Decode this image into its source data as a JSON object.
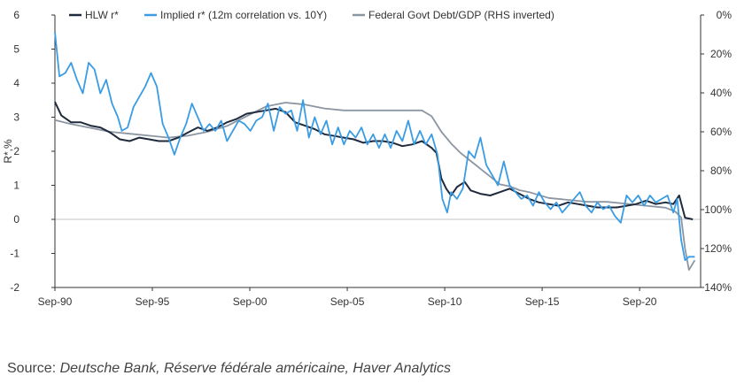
{
  "chart_data": {
    "type": "line",
    "title": "",
    "ylabel": "R*,%",
    "y2label": "",
    "ylim": [
      -2,
      6
    ],
    "y_ticks": [
      "6",
      "5",
      "4",
      "3",
      "2",
      "1",
      "0",
      "-1",
      "-2"
    ],
    "y2lim": [
      0,
      140
    ],
    "y2_inverted": true,
    "y2_ticks": [
      "0%",
      "20%",
      "40%",
      "60%",
      "80%",
      "100%",
      "120%",
      "140%"
    ],
    "xlim": [
      1990.67,
      2023.8
    ],
    "x_ticks": [
      {
        "label": "Sep-90",
        "x": 1990.67
      },
      {
        "label": "Sep-95",
        "x": 1995.67
      },
      {
        "label": "Sep-00",
        "x": 2000.67
      },
      {
        "label": "Sep-05",
        "x": 2005.67
      },
      {
        "label": "Sep-10",
        "x": 2010.67
      },
      {
        "label": "Sep-15",
        "x": 2015.67
      },
      {
        "label": "Sep-20",
        "x": 2020.67
      }
    ],
    "grid": false,
    "legend_position": "top",
    "series": [
      {
        "name": "HLW r*",
        "color": "#1f2a3c",
        "axis": "left",
        "points": [
          [
            1990.67,
            3.45
          ],
          [
            1991.0,
            3.05
          ],
          [
            1991.5,
            2.85
          ],
          [
            1992.0,
            2.85
          ],
          [
            1992.5,
            2.75
          ],
          [
            1993.0,
            2.7
          ],
          [
            1993.5,
            2.55
          ],
          [
            1994.0,
            2.35
          ],
          [
            1994.5,
            2.3
          ],
          [
            1995.0,
            2.4
          ],
          [
            1995.5,
            2.35
          ],
          [
            1996.0,
            2.3
          ],
          [
            1996.5,
            2.3
          ],
          [
            1997.0,
            2.4
          ],
          [
            1997.5,
            2.55
          ],
          [
            1998.0,
            2.7
          ],
          [
            1998.5,
            2.6
          ],
          [
            1999.0,
            2.7
          ],
          [
            1999.5,
            2.85
          ],
          [
            2000.0,
            2.95
          ],
          [
            2000.5,
            3.1
          ],
          [
            2001.0,
            3.15
          ],
          [
            2001.5,
            3.2
          ],
          [
            2002.0,
            3.25
          ],
          [
            2002.5,
            3.15
          ],
          [
            2003.0,
            2.85
          ],
          [
            2003.5,
            2.75
          ],
          [
            2004.0,
            2.65
          ],
          [
            2004.5,
            2.5
          ],
          [
            2005.0,
            2.45
          ],
          [
            2005.5,
            2.4
          ],
          [
            2006.0,
            2.35
          ],
          [
            2006.5,
            2.25
          ],
          [
            2007.0,
            2.3
          ],
          [
            2007.5,
            2.3
          ],
          [
            2008.0,
            2.25
          ],
          [
            2008.5,
            2.15
          ],
          [
            2009.0,
            2.2
          ],
          [
            2009.5,
            2.3
          ],
          [
            2010.0,
            2.1
          ],
          [
            2010.25,
            1.95
          ],
          [
            2010.5,
            1.2
          ],
          [
            2010.75,
            0.9
          ],
          [
            2011.0,
            0.7
          ],
          [
            2011.3,
            0.95
          ],
          [
            2011.7,
            1.1
          ],
          [
            2012.0,
            0.85
          ],
          [
            2012.5,
            0.75
          ],
          [
            2013.0,
            0.7
          ],
          [
            2013.5,
            0.8
          ],
          [
            2014.0,
            0.9
          ],
          [
            2014.5,
            0.75
          ],
          [
            2015.0,
            0.6
          ],
          [
            2015.5,
            0.5
          ],
          [
            2016.0,
            0.45
          ],
          [
            2016.5,
            0.4
          ],
          [
            2017.0,
            0.5
          ],
          [
            2017.5,
            0.45
          ],
          [
            2018.0,
            0.4
          ],
          [
            2018.5,
            0.35
          ],
          [
            2019.0,
            0.35
          ],
          [
            2019.5,
            0.35
          ],
          [
            2020.0,
            0.4
          ],
          [
            2020.5,
            0.45
          ],
          [
            2021.0,
            0.55
          ],
          [
            2021.5,
            0.45
          ],
          [
            2022.0,
            0.5
          ],
          [
            2022.4,
            0.45
          ],
          [
            2022.7,
            0.7
          ],
          [
            2023.0,
            0.05
          ],
          [
            2023.4,
            0.0
          ]
        ]
      },
      {
        "name": "Implied r* (12m correlation vs. 10Y)",
        "color": "#3a9ce4",
        "axis": "left",
        "points": [
          [
            1990.67,
            5.5
          ],
          [
            1990.9,
            4.2
          ],
          [
            1991.2,
            4.3
          ],
          [
            1991.5,
            4.6
          ],
          [
            1991.8,
            4.1
          ],
          [
            1992.1,
            3.7
          ],
          [
            1992.4,
            4.6
          ],
          [
            1992.7,
            4.4
          ],
          [
            1993.0,
            3.7
          ],
          [
            1993.3,
            4.1
          ],
          [
            1993.6,
            3.4
          ],
          [
            1993.9,
            3.0
          ],
          [
            1994.1,
            2.6
          ],
          [
            1994.4,
            2.7
          ],
          [
            1994.7,
            3.3
          ],
          [
            1995.0,
            3.6
          ],
          [
            1995.3,
            3.9
          ],
          [
            1995.6,
            4.3
          ],
          [
            1995.9,
            3.9
          ],
          [
            1996.2,
            2.8
          ],
          [
            1996.5,
            2.4
          ],
          [
            1996.8,
            1.9
          ],
          [
            1997.1,
            2.4
          ],
          [
            1997.4,
            2.8
          ],
          [
            1997.7,
            3.4
          ],
          [
            1998.0,
            3.0
          ],
          [
            1998.3,
            2.6
          ],
          [
            1998.6,
            2.8
          ],
          [
            1998.9,
            2.6
          ],
          [
            1999.2,
            2.9
          ],
          [
            1999.5,
            2.3
          ],
          [
            1999.8,
            2.6
          ],
          [
            2000.1,
            2.9
          ],
          [
            2000.4,
            2.8
          ],
          [
            2000.7,
            2.6
          ],
          [
            2001.0,
            2.9
          ],
          [
            2001.3,
            3.0
          ],
          [
            2001.6,
            3.4
          ],
          [
            2001.9,
            2.6
          ],
          [
            2002.2,
            3.3
          ],
          [
            2002.5,
            3.1
          ],
          [
            2002.8,
            3.2
          ],
          [
            2003.1,
            2.6
          ],
          [
            2003.4,
            3.5
          ],
          [
            2003.7,
            2.4
          ],
          [
            2004.0,
            3.0
          ],
          [
            2004.3,
            2.5
          ],
          [
            2004.6,
            2.9
          ],
          [
            2004.9,
            2.2
          ],
          [
            2005.2,
            2.7
          ],
          [
            2005.5,
            2.2
          ],
          [
            2005.8,
            2.6
          ],
          [
            2006.1,
            2.4
          ],
          [
            2006.4,
            2.7
          ],
          [
            2006.7,
            2.2
          ],
          [
            2007.0,
            2.5
          ],
          [
            2007.3,
            2.1
          ],
          [
            2007.6,
            2.5
          ],
          [
            2007.9,
            2.1
          ],
          [
            2008.2,
            2.6
          ],
          [
            2008.5,
            2.3
          ],
          [
            2008.8,
            2.9
          ],
          [
            2009.1,
            2.2
          ],
          [
            2009.4,
            2.6
          ],
          [
            2009.7,
            2.2
          ],
          [
            2010.0,
            2.5
          ],
          [
            2010.3,
            1.9
          ],
          [
            2010.55,
            0.6
          ],
          [
            2010.8,
            0.2
          ],
          [
            2011.0,
            0.8
          ],
          [
            2011.3,
            0.6
          ],
          [
            2011.6,
            0.9
          ],
          [
            2011.9,
            2.0
          ],
          [
            2012.2,
            1.8
          ],
          [
            2012.5,
            2.4
          ],
          [
            2012.8,
            1.6
          ],
          [
            2013.1,
            1.3
          ],
          [
            2013.4,
            1.0
          ],
          [
            2013.7,
            1.7
          ],
          [
            2014.0,
            1.0
          ],
          [
            2014.3,
            0.8
          ],
          [
            2014.6,
            0.6
          ],
          [
            2014.9,
            0.7
          ],
          [
            2015.2,
            0.4
          ],
          [
            2015.5,
            0.8
          ],
          [
            2015.8,
            0.5
          ],
          [
            2016.1,
            0.3
          ],
          [
            2016.4,
            0.5
          ],
          [
            2016.7,
            0.2
          ],
          [
            2017.0,
            0.4
          ],
          [
            2017.3,
            0.6
          ],
          [
            2017.6,
            0.8
          ],
          [
            2017.9,
            0.4
          ],
          [
            2018.2,
            0.2
          ],
          [
            2018.5,
            0.5
          ],
          [
            2018.8,
            0.3
          ],
          [
            2019.1,
            0.4
          ],
          [
            2019.4,
            0.1
          ],
          [
            2019.7,
            -0.1
          ],
          [
            2020.0,
            0.7
          ],
          [
            2020.3,
            0.5
          ],
          [
            2020.6,
            0.7
          ],
          [
            2020.9,
            0.4
          ],
          [
            2021.2,
            0.7
          ],
          [
            2021.5,
            0.5
          ],
          [
            2021.8,
            0.6
          ],
          [
            2022.1,
            0.7
          ],
          [
            2022.4,
            0.2
          ],
          [
            2022.6,
            0.6
          ],
          [
            2022.8,
            -0.6
          ],
          [
            2023.0,
            -1.2
          ],
          [
            2023.2,
            -1.1
          ],
          [
            2023.5,
            -1.1
          ]
        ]
      },
      {
        "name": "Federal Govt Debt/GDP (RHS inverted)",
        "color": "#8c96a3",
        "axis": "right",
        "points": [
          [
            1990.67,
            54
          ],
          [
            1991.5,
            56
          ],
          [
            1992.5,
            58
          ],
          [
            1993.5,
            60
          ],
          [
            1994.5,
            61
          ],
          [
            1995.5,
            62
          ],
          [
            1996.5,
            63
          ],
          [
            1997.5,
            62
          ],
          [
            1998.5,
            60
          ],
          [
            1999.5,
            57
          ],
          [
            2000.5,
            52
          ],
          [
            2001.5,
            47
          ],
          [
            2002.5,
            45
          ],
          [
            2003.5,
            46
          ],
          [
            2004.5,
            48
          ],
          [
            2005.5,
            49
          ],
          [
            2006.5,
            49
          ],
          [
            2007.5,
            49
          ],
          [
            2008.5,
            49
          ],
          [
            2009.5,
            49
          ],
          [
            2010.0,
            52
          ],
          [
            2010.5,
            60
          ],
          [
            2011.0,
            66
          ],
          [
            2011.5,
            71
          ],
          [
            2012.0,
            75
          ],
          [
            2012.5,
            79
          ],
          [
            2013.0,
            83
          ],
          [
            2013.5,
            87
          ],
          [
            2014.0,
            88
          ],
          [
            2014.5,
            90
          ],
          [
            2015.0,
            91
          ],
          [
            2016.0,
            94
          ],
          [
            2017.0,
            95
          ],
          [
            2018.0,
            96
          ],
          [
            2019.0,
            96
          ],
          [
            2020.0,
            97
          ],
          [
            2021.0,
            98
          ],
          [
            2022.0,
            99
          ],
          [
            2022.5,
            101
          ],
          [
            2022.8,
            104
          ],
          [
            2023.0,
            120
          ],
          [
            2023.2,
            131
          ],
          [
            2023.5,
            126
          ]
        ]
      }
    ]
  },
  "source": {
    "prefix": "Source: ",
    "text": "Deutsche Bank, Réserve fédérale américaine, Haver Analytics"
  }
}
